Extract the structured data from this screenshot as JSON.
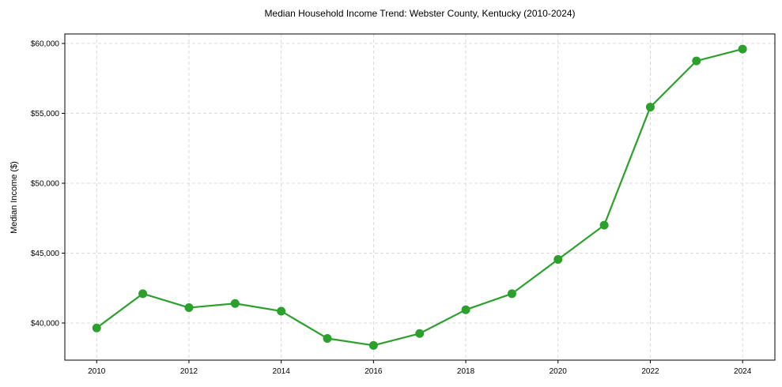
{
  "chart_data": {
    "type": "line",
    "title": "Median Household Income Trend: Webster County, Kentucky (2010-2024)",
    "xlabel": "",
    "ylabel": "Median Income ($)",
    "x": [
      2010,
      2011,
      2012,
      2013,
      2014,
      2015,
      2016,
      2017,
      2018,
      2019,
      2020,
      2021,
      2022,
      2023,
      2024
    ],
    "series": [
      {
        "name": "Median Household Income",
        "color": "#2ca02c",
        "marker": "circle",
        "values": [
          39650,
          42100,
          41100,
          41400,
          40850,
          38900,
          38400,
          39250,
          40950,
          42100,
          44550,
          47000,
          55450,
          58750,
          59600
        ]
      }
    ],
    "xticks": [
      2010,
      2012,
      2014,
      2016,
      2018,
      2020,
      2022,
      2024
    ],
    "xtick_labels": [
      "2010",
      "2012",
      "2014",
      "2016",
      "2018",
      "2020",
      "2022",
      "2024"
    ],
    "yticks": [
      40000,
      45000,
      50000,
      55000,
      60000
    ],
    "ytick_labels": [
      "$40,000",
      "$45,000",
      "$50,000",
      "$55,000",
      "$60,000"
    ],
    "xlim": [
      2009.31,
      2024.7
    ],
    "ylim": [
      37345,
      60680
    ],
    "grid": true,
    "grid_style": "dashed",
    "legend": null
  }
}
